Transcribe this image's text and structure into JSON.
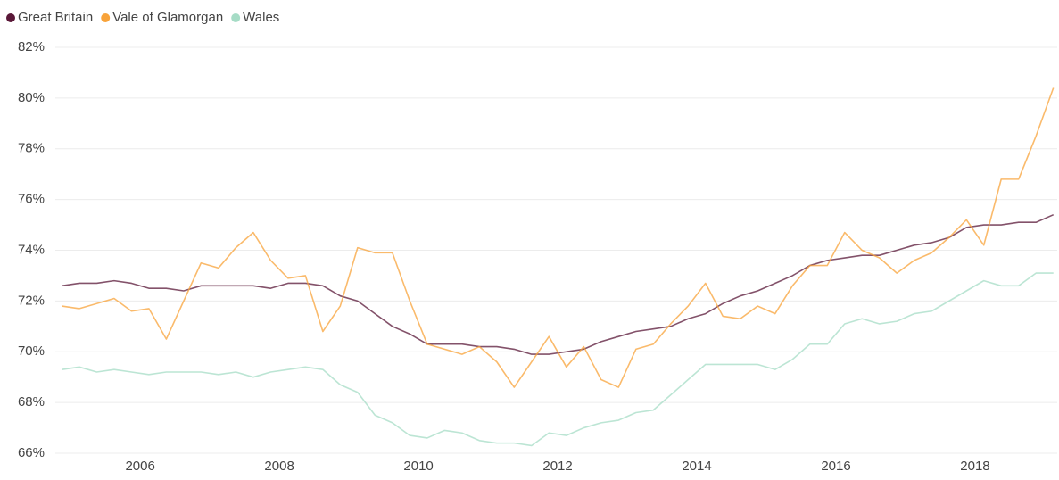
{
  "chart_data": {
    "type": "line",
    "x": [
      2004.875,
      2005.125,
      2005.375,
      2005.625,
      2005.875,
      2006.125,
      2006.375,
      2006.625,
      2006.875,
      2007.125,
      2007.375,
      2007.625,
      2007.875,
      2008.125,
      2008.375,
      2008.625,
      2008.875,
      2009.125,
      2009.375,
      2009.625,
      2009.875,
      2010.125,
      2010.375,
      2010.625,
      2010.875,
      2011.125,
      2011.375,
      2011.625,
      2011.875,
      2012.125,
      2012.375,
      2012.625,
      2012.875,
      2013.125,
      2013.375,
      2013.625,
      2013.875,
      2014.125,
      2014.375,
      2014.625,
      2014.875,
      2015.125,
      2015.375,
      2015.625,
      2015.875,
      2016.125,
      2016.375,
      2016.625,
      2016.875,
      2017.125,
      2017.375,
      2017.625,
      2017.875,
      2018.125,
      2018.375,
      2018.625,
      2018.875,
      2019.125
    ],
    "series": [
      {
        "name": "Great Britain",
        "color": "#5a1838",
        "values": [
          72.6,
          72.7,
          72.7,
          72.8,
          72.7,
          72.5,
          72.5,
          72.4,
          72.6,
          72.6,
          72.6,
          72.6,
          72.5,
          72.7,
          72.7,
          72.6,
          72.2,
          72.0,
          71.5,
          71.0,
          70.7,
          70.3,
          70.3,
          70.3,
          70.2,
          70.2,
          70.1,
          69.9,
          69.9,
          70.0,
          70.1,
          70.4,
          70.6,
          70.8,
          70.9,
          71.0,
          71.3,
          71.5,
          71.9,
          72.2,
          72.4,
          72.7,
          73.0,
          73.4,
          73.6,
          73.7,
          73.8,
          73.8,
          74.0,
          74.2,
          74.3,
          74.5,
          74.9,
          75.0,
          75.0,
          75.1,
          75.1,
          75.4
        ]
      },
      {
        "name": "Vale of Glamorgan",
        "color": "#f8a33a",
        "values": [
          71.8,
          71.7,
          71.9,
          72.1,
          71.6,
          71.7,
          70.5,
          72.0,
          73.5,
          73.3,
          74.1,
          74.7,
          73.6,
          72.9,
          73.0,
          70.8,
          71.8,
          74.1,
          73.9,
          73.9,
          72.0,
          70.3,
          70.1,
          69.9,
          70.2,
          69.6,
          68.6,
          69.6,
          70.6,
          69.4,
          70.2,
          68.9,
          68.6,
          70.1,
          70.3,
          71.1,
          71.8,
          72.7,
          71.4,
          71.3,
          71.8,
          71.5,
          72.6,
          73.4,
          73.4,
          74.7,
          74.0,
          73.7,
          73.1,
          73.6,
          73.9,
          74.5,
          75.2,
          74.2,
          76.8,
          76.8,
          78.5,
          80.4
        ]
      },
      {
        "name": "Wales",
        "color": "#a6dcc6",
        "values": [
          69.3,
          69.4,
          69.2,
          69.3,
          69.2,
          69.1,
          69.2,
          69.2,
          69.2,
          69.1,
          69.2,
          69.0,
          69.2,
          69.3,
          69.4,
          69.3,
          68.7,
          68.4,
          67.5,
          67.2,
          66.7,
          66.6,
          66.9,
          66.8,
          66.5,
          66.4,
          66.4,
          66.3,
          66.8,
          66.7,
          67.0,
          67.2,
          67.3,
          67.6,
          67.7,
          68.3,
          68.9,
          69.5,
          69.5,
          69.5,
          69.5,
          69.3,
          69.7,
          70.3,
          70.3,
          71.1,
          71.3,
          71.1,
          71.2,
          71.5,
          71.6,
          72.0,
          72.4,
          72.8,
          72.6,
          72.6,
          73.1,
          73.1
        ]
      }
    ],
    "xlim": [
      2004.78,
      2019.18
    ],
    "xticks": [
      2006,
      2008,
      2010,
      2012,
      2014,
      2016,
      2018
    ],
    "ylim": [
      66,
      82
    ],
    "yticks": [
      {
        "value": 66,
        "label": "66%"
      },
      {
        "value": 68,
        "label": "68%"
      },
      {
        "value": 70,
        "label": "70%"
      },
      {
        "value": 72,
        "label": "72%"
      },
      {
        "value": 74,
        "label": "74%"
      },
      {
        "value": 76,
        "label": "76%"
      },
      {
        "value": 78,
        "label": "78%"
      },
      {
        "value": 80,
        "label": "80%"
      },
      {
        "value": 82,
        "label": "82%"
      }
    ],
    "grid": true,
    "legend": "top-left"
  }
}
